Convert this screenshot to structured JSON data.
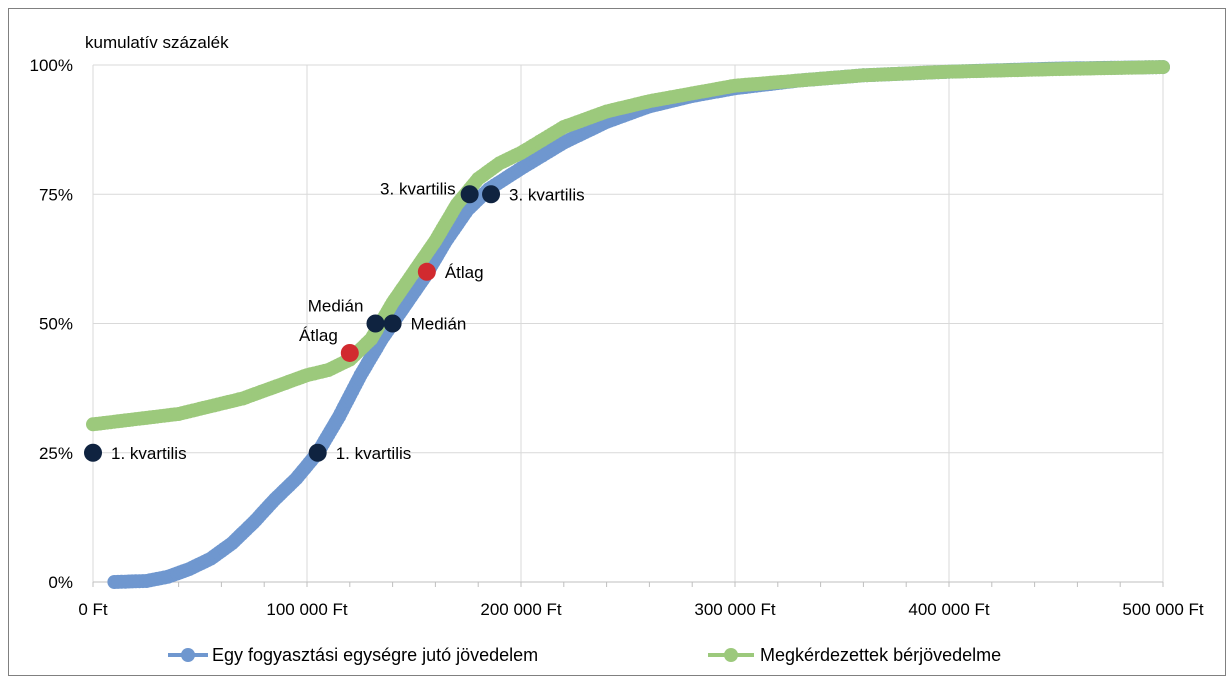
{
  "chart_data": {
    "type": "scatter",
    "title": "",
    "ylabel": "kumulatív százalék",
    "xlabel": "",
    "xlim": [
      0,
      500000
    ],
    "ylim": [
      0,
      100
    ],
    "x_tick_values": [
      0,
      100000,
      200000,
      300000,
      400000,
      500000
    ],
    "x_tick_labels": [
      "0 Ft",
      "100 000 Ft",
      "200 000 Ft",
      "300 000 Ft",
      "400 000 Ft",
      "500 000 Ft"
    ],
    "y_tick_values": [
      0,
      25,
      50,
      75,
      100
    ],
    "y_tick_labels": [
      "0%",
      "25%",
      "50%",
      "75%",
      "100%"
    ],
    "grid": true,
    "legend_position": "bottom",
    "series": [
      {
        "name": "Egy fogyasztási egységre jutó jövedelem",
        "color": "#6f97cf",
        "x": [
          10000,
          25000,
          35000,
          45000,
          55000,
          65000,
          75000,
          85000,
          95000,
          105000,
          115000,
          125000,
          135000,
          145000,
          155000,
          165000,
          175000,
          185000,
          200000,
          220000,
          240000,
          260000,
          280000,
          300000,
          330000,
          360000,
          400000,
          450000,
          500000
        ],
        "y": [
          0,
          0.2,
          1,
          2.5,
          4.5,
          7.5,
          11.5,
          16,
          20,
          25,
          32,
          40,
          47,
          53,
          59,
          66,
          72,
          76,
          80,
          85,
          89,
          92,
          94,
          95.5,
          97,
          98,
          98.7,
          99.3,
          99.6
        ]
      },
      {
        "name": "Megkérdezettek bérjövedelme",
        "color": "#9cc97c",
        "x": [
          0,
          10000,
          20000,
          30000,
          40000,
          50000,
          60000,
          70000,
          80000,
          90000,
          100000,
          110000,
          120000,
          130000,
          140000,
          150000,
          160000,
          170000,
          180000,
          190000,
          200000,
          220000,
          240000,
          260000,
          280000,
          300000,
          330000,
          360000,
          400000,
          450000,
          500000
        ],
        "y": [
          30.5,
          31,
          31.5,
          32,
          32.5,
          33.5,
          34.5,
          35.5,
          37,
          38.5,
          40,
          41,
          43,
          47,
          54,
          60,
          66,
          73,
          78,
          81,
          83,
          88,
          91,
          93,
          94.5,
          96,
          97,
          98,
          98.7,
          99.2,
          99.6
        ]
      }
    ],
    "markers": [
      {
        "label": "1. kvartilis",
        "x": 0,
        "y": 25,
        "color": "#0f2340",
        "label_side": "right"
      },
      {
        "label": "1. kvartilis",
        "x": 105000,
        "y": 25,
        "color": "#0f2340",
        "label_side": "right"
      },
      {
        "label": "Átlag",
        "x": 120000,
        "y": 44.3,
        "color": "#d12a2f",
        "label_side": "left-up"
      },
      {
        "label": "Medián",
        "x": 132000,
        "y": 50,
        "color": "#0f2340",
        "label_side": "left-up"
      },
      {
        "label": "Medián",
        "x": 140000,
        "y": 50,
        "color": "#0f2340",
        "label_side": "right"
      },
      {
        "label": "Átlag",
        "x": 156000,
        "y": 60,
        "color": "#d12a2f",
        "label_side": "right"
      },
      {
        "label": "3. kvartilis",
        "x": 176000,
        "y": 75,
        "color": "#0f2340",
        "label_side": "left"
      },
      {
        "label": "3. kvartilis",
        "x": 186000,
        "y": 75,
        "color": "#0f2340",
        "label_side": "right"
      }
    ]
  }
}
